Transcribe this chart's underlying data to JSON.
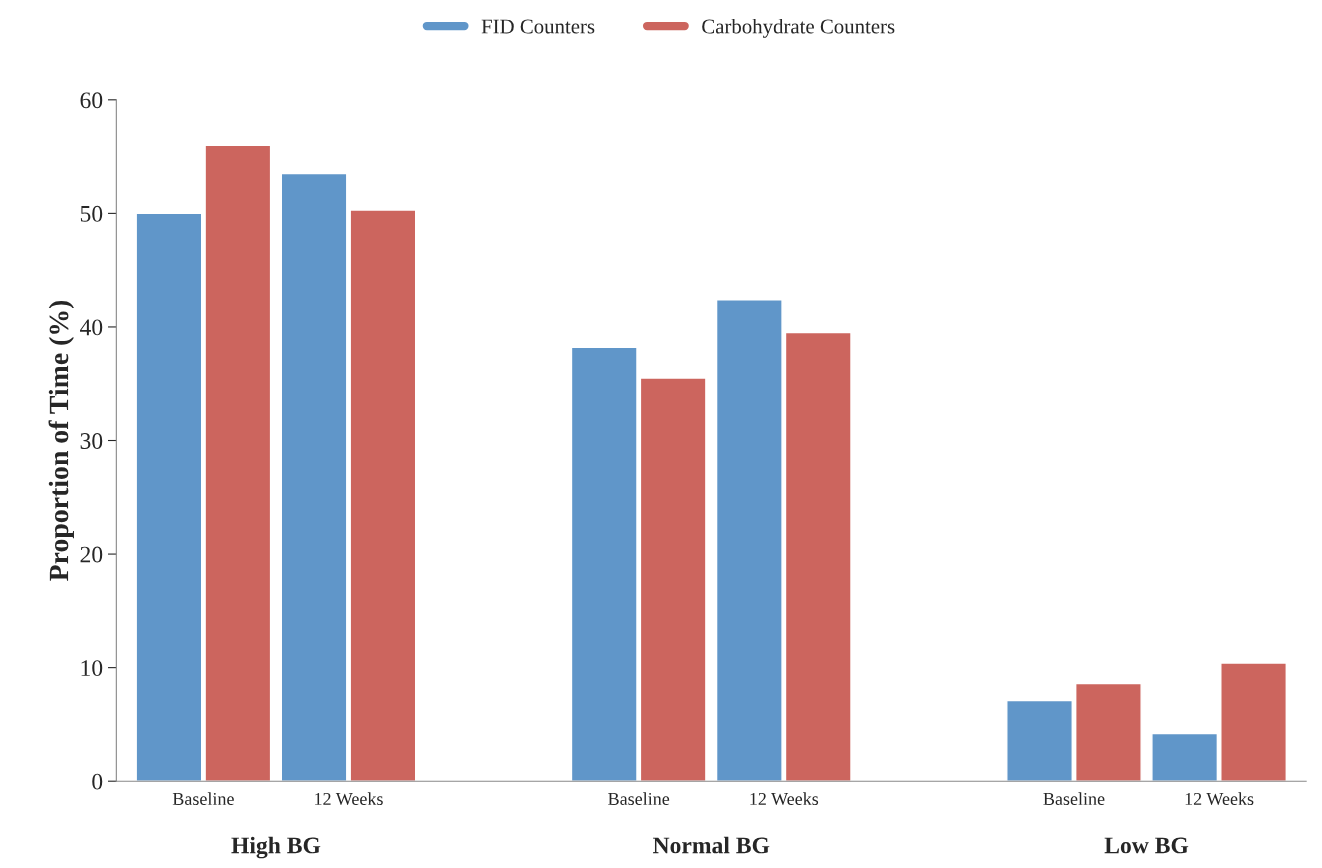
{
  "chart_data": {
    "type": "bar",
    "ylabel": "Proportion of Time (%)",
    "categories": [
      "Baseline",
      "12 Weeks",
      null,
      "Baseline",
      "12 Weeks",
      null,
      "Baseline",
      "12 Weeks"
    ],
    "series": [
      {
        "name": "FID Counters",
        "color": "#6096c9",
        "values": [
          50,
          53.5,
          null,
          38.2,
          42.4,
          null,
          7.1,
          4.2
        ]
      },
      {
        "name": "Carbohydrate Counters",
        "color": "#cc655e",
        "values": [
          56,
          50.3,
          null,
          35.5,
          39.5,
          null,
          8.6,
          10.4
        ]
      }
    ],
    "annotations": [
      "High BG",
      "Normal BG",
      "Low BG"
    ],
    "ylim": [
      0,
      60
    ],
    "yticks": [
      0,
      10,
      20,
      30,
      40,
      50,
      60
    ],
    "grid": false,
    "legend": "top"
  }
}
